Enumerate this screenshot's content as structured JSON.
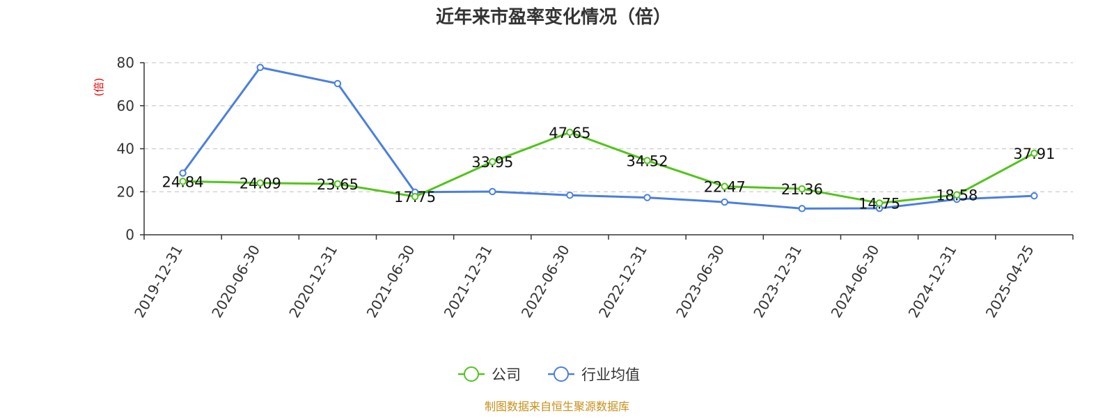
{
  "chart_data": {
    "type": "line",
    "title": "近年来市盈率变化情况（倍）",
    "ylabel": "(倍)",
    "xlabel": "",
    "ylim": [
      0,
      80
    ],
    "yticks": [
      0,
      20,
      40,
      60,
      80
    ],
    "grid": true,
    "legend_position": "bottom",
    "categories": [
      "2019-12-31",
      "2020-06-30",
      "2020-12-31",
      "2021-06-30",
      "2021-12-31",
      "2022-06-30",
      "2022-12-31",
      "2023-06-30",
      "2023-12-31",
      "2024-06-30",
      "2024-12-31",
      "2025-04-25"
    ],
    "series": [
      {
        "name": "公司",
        "color": "#52c41a",
        "values": [
          24.84,
          24.09,
          23.65,
          17.75,
          33.95,
          47.65,
          34.52,
          22.47,
          21.36,
          14.75,
          18.58,
          37.91
        ],
        "labels": [
          "24.84",
          "24.09",
          "23.65",
          "17.75",
          "33.95",
          "47.65",
          "34.52",
          "22.47",
          "21.36",
          "14.75",
          "18.58",
          "37.91"
        ]
      },
      {
        "name": "行业均值",
        "color": "#4a7fe0",
        "values": [
          28.7,
          77.8,
          70.3,
          19.8,
          20.1,
          18.4,
          17.3,
          15.2,
          12.2,
          12.3,
          16.5,
          18.1
        ]
      }
    ],
    "source": "制图数据来自恒生聚源数据库",
    "colors": {
      "ylabel": "#e60000",
      "source": "#c8901a",
      "grid": "#cccccc",
      "axis": "#333333"
    }
  }
}
